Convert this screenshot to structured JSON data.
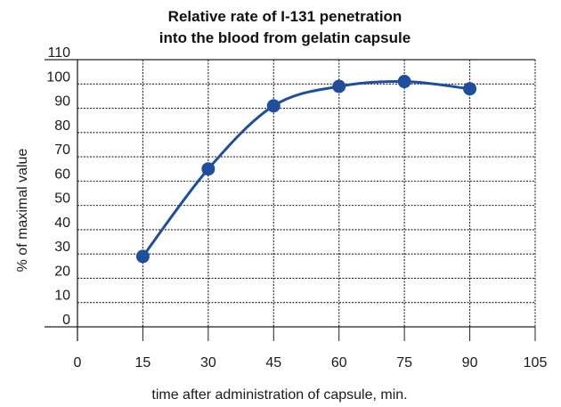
{
  "chart_data": {
    "type": "line",
    "title_lines": [
      "Relative rate of I-131 penetration",
      "into the blood from gelatin capsule"
    ],
    "xlabel": "time after administration of capsule, min.",
    "ylabel": "% of maximal value",
    "xlim": [
      0,
      105
    ],
    "ylim": [
      0,
      110
    ],
    "x_ticks": [
      "0",
      "15",
      "30",
      "45",
      "60",
      "75",
      "90",
      "105"
    ],
    "y_ticks": [
      "0",
      "10",
      "20",
      "30",
      "40",
      "50",
      "60",
      "70",
      "80",
      "90",
      "100",
      "110"
    ],
    "grid": true,
    "line_color": "#1f4e9c",
    "marker_color": "#1f4e9c",
    "series": [
      {
        "x": [
          15,
          30,
          45,
          60,
          75,
          90
        ],
        "y": [
          29,
          65,
          91,
          99,
          101,
          98
        ]
      }
    ]
  }
}
